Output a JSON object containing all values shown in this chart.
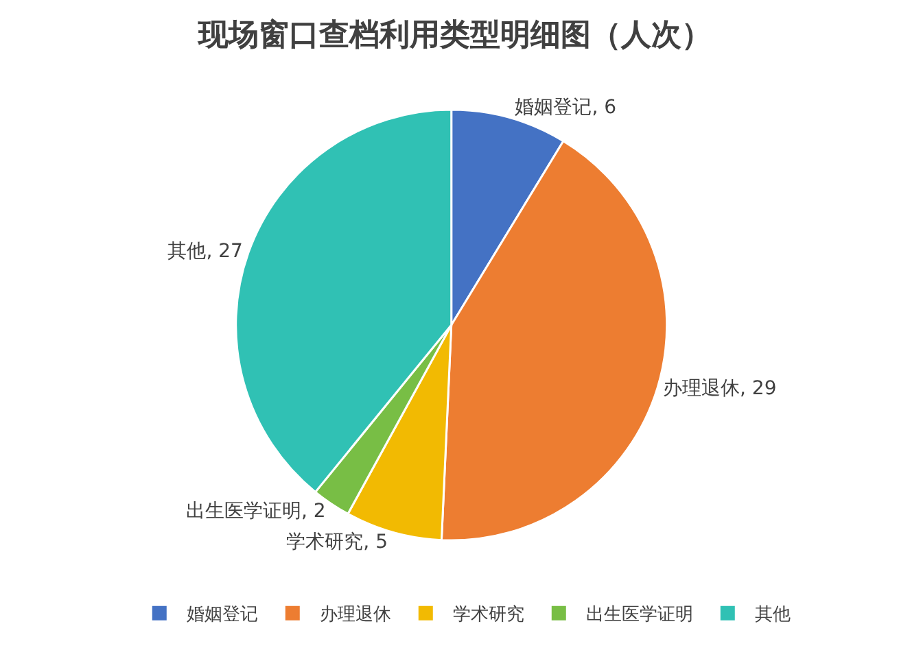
{
  "chart_data": {
    "type": "pie",
    "title": "现场窗口查档利用类型明细图（人次）",
    "categories": [
      "婚姻登记",
      "办理退休",
      "学术研究",
      "出生医学证明",
      "其他"
    ],
    "values": [
      6,
      29,
      5,
      2,
      27
    ],
    "value_labels": [
      ", 6",
      ", 29",
      ", 5",
      ", 2",
      ", 27"
    ],
    "colors": [
      "#4472c4",
      "#ed7d31",
      "#f2ba02",
      "#78be45",
      "#30c1b4"
    ],
    "legend": "bottom"
  }
}
